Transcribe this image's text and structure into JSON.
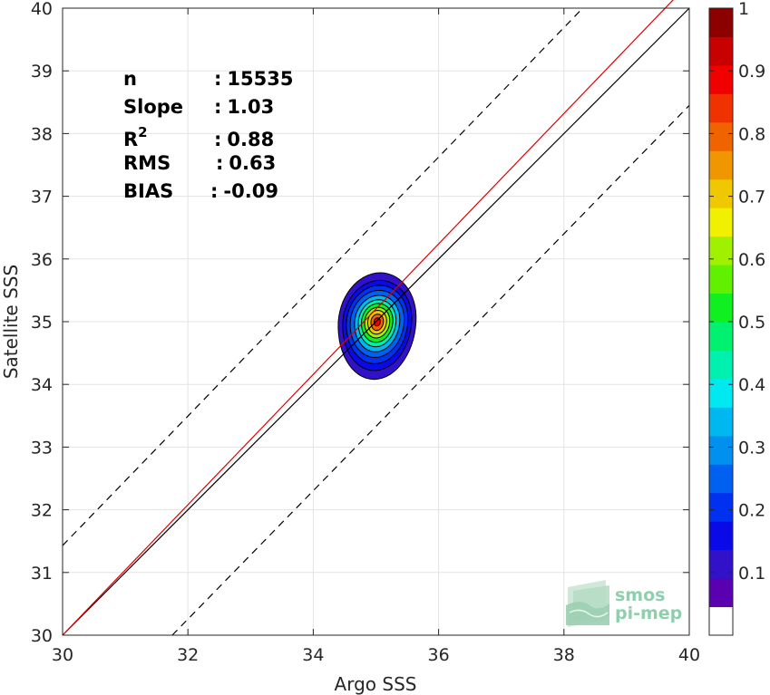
{
  "chart_data": {
    "type": "contour",
    "xlabel": "Argo SSS",
    "ylabel": "Satellite SSS",
    "xlim": [
      30,
      40
    ],
    "ylim": [
      30,
      40
    ],
    "xticks": [
      "30",
      "32",
      "34",
      "36",
      "38",
      "40"
    ],
    "yticks": [
      "30",
      "31",
      "32",
      "33",
      "34",
      "35",
      "36",
      "37",
      "38",
      "39",
      "40"
    ],
    "grid": true,
    "stats": [
      {
        "label": "n",
        "sep": ":",
        "value": "15535"
      },
      {
        "label": "Slope",
        "sep": ":",
        "value": "1.03"
      },
      {
        "label": "R",
        "sup": "2",
        "sep": ":",
        "value": "0.88"
      },
      {
        "label": "RMS",
        "sep": ":",
        "value": "0.63"
      },
      {
        "label": "BIAS",
        "sep": ":",
        "value": "-0.09"
      }
    ],
    "lines": [
      {
        "name": "identity",
        "color": "#000000",
        "dash": false,
        "points": [
          [
            30,
            30
          ],
          [
            40,
            40
          ]
        ]
      },
      {
        "name": "regression",
        "color": "#e00000",
        "dash": false,
        "points": [
          [
            30,
            30
          ],
          [
            40,
            40.4
          ]
        ]
      },
      {
        "name": "upper-bound",
        "color": "#000000",
        "dash": true,
        "points": [
          [
            30,
            31.43
          ],
          [
            38.3,
            40
          ]
        ]
      },
      {
        "name": "lower-bound",
        "color": "#000000",
        "dash": true,
        "points": [
          [
            31.75,
            30
          ],
          [
            40,
            38.45
          ]
        ]
      }
    ],
    "density": {
      "center": [
        35.02,
        35.0
      ],
      "contours": [
        {
          "level": 0.05,
          "rx": 0.62,
          "ryTop": 0.78,
          "ryBottom": 0.92
        },
        {
          "level": 0.1,
          "rx": 0.55,
          "ryTop": 0.66,
          "ryBottom": 0.78
        },
        {
          "level": 0.15,
          "rx": 0.49,
          "ryTop": 0.58,
          "ryBottom": 0.67
        },
        {
          "level": 0.2,
          "rx": 0.43,
          "ryTop": 0.5,
          "ryBottom": 0.57
        },
        {
          "level": 0.3,
          "rx": 0.36,
          "ryTop": 0.42,
          "ryBottom": 0.48
        },
        {
          "level": 0.4,
          "rx": 0.3,
          "ryTop": 0.35,
          "ryBottom": 0.4
        },
        {
          "level": 0.5,
          "rx": 0.25,
          "ryTop": 0.29,
          "ryBottom": 0.33
        },
        {
          "level": 0.6,
          "rx": 0.2,
          "ryTop": 0.23,
          "ryBottom": 0.26
        },
        {
          "level": 0.7,
          "rx": 0.15,
          "ryTop": 0.18,
          "ryBottom": 0.2
        },
        {
          "level": 0.8,
          "rx": 0.1,
          "ryTop": 0.12,
          "ryBottom": 0.14
        },
        {
          "level": 0.9,
          "rx": 0.05,
          "ryTop": 0.06,
          "ryBottom": 0.07
        }
      ]
    },
    "colorbar": {
      "range": [
        0,
        1
      ],
      "ticks": [
        "0.1",
        "0.2",
        "0.3",
        "0.4",
        "0.5",
        "0.6",
        "0.7",
        "0.8",
        "0.9",
        "1"
      ],
      "bands": [
        "#ffffff",
        "#5a00b0",
        "#3212c8",
        "#0a0ae8",
        "#0030f0",
        "#0060f0",
        "#0090f0",
        "#00b8f0",
        "#00e8f0",
        "#00f0b0",
        "#00f070",
        "#10f020",
        "#60f000",
        "#a0f000",
        "#f0f000",
        "#f0c800",
        "#f09600",
        "#f06400",
        "#f03200",
        "#f00000",
        "#c80000",
        "#8c0000"
      ]
    },
    "logo": {
      "line1": "smos",
      "line2": "pi-mep"
    }
  }
}
